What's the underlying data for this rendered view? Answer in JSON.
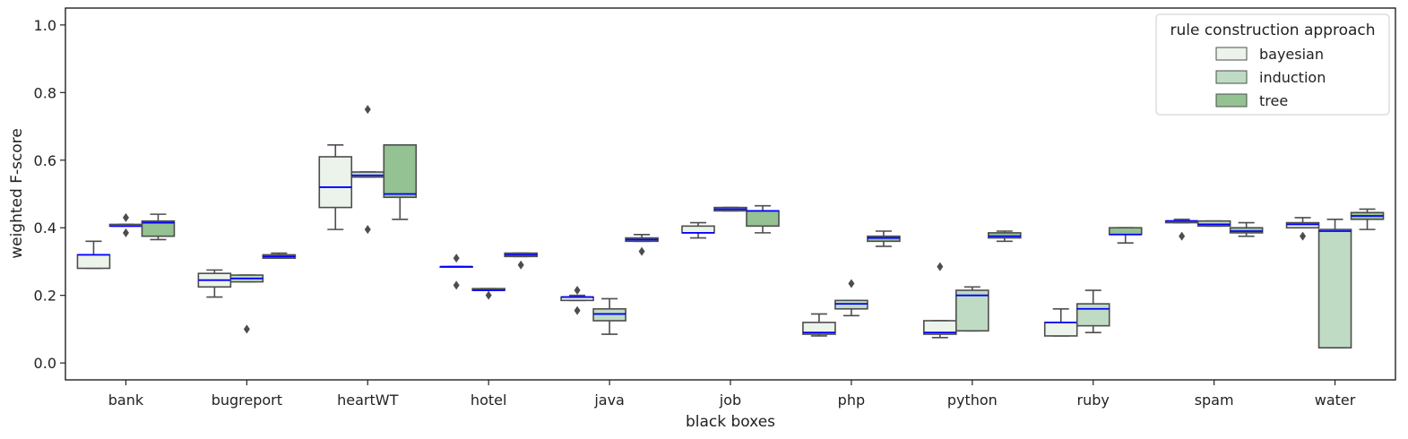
{
  "chart_data": {
    "type": "box",
    "xlabel": "black boxes",
    "ylabel": "weighted F-score",
    "ylim": [
      -0.05,
      1.05
    ],
    "yticks": [
      "0.0",
      "0.2",
      "0.4",
      "0.6",
      "0.8",
      "1.0"
    ],
    "categories": [
      "bank",
      "bugreport",
      "heartWT",
      "hotel",
      "java",
      "job",
      "php",
      "python",
      "ruby",
      "spam",
      "water"
    ],
    "legend": {
      "title": "rule construction approach",
      "position": "top-right"
    },
    "median_color": "#0000ff",
    "series": [
      {
        "name": "bayesian",
        "color": "#ebf3ea",
        "boxes": [
          {
            "whislo": 0.28,
            "q1": 0.28,
            "med": 0.32,
            "q3": 0.32,
            "whishi": 0.36,
            "fliers": []
          },
          {
            "whislo": 0.195,
            "q1": 0.225,
            "med": 0.245,
            "q3": 0.265,
            "whishi": 0.275,
            "fliers": []
          },
          {
            "whislo": 0.395,
            "q1": 0.46,
            "med": 0.52,
            "q3": 0.61,
            "whishi": 0.645,
            "fliers": []
          },
          {
            "whislo": 0.285,
            "q1": 0.285,
            "med": 0.285,
            "q3": 0.285,
            "whishi": 0.285,
            "fliers": [
              0.31,
              0.23
            ]
          },
          {
            "whislo": 0.185,
            "q1": 0.185,
            "med": 0.195,
            "q3": 0.195,
            "whishi": 0.2,
            "fliers": [
              0.215,
              0.155
            ]
          },
          {
            "whislo": 0.37,
            "q1": 0.385,
            "med": 0.385,
            "q3": 0.405,
            "whishi": 0.415,
            "fliers": []
          },
          {
            "whislo": 0.08,
            "q1": 0.085,
            "med": 0.09,
            "q3": 0.12,
            "whishi": 0.145,
            "fliers": []
          },
          {
            "whislo": 0.075,
            "q1": 0.085,
            "med": 0.09,
            "q3": 0.125,
            "whishi": 0.125,
            "fliers": [
              0.285
            ]
          },
          {
            "whislo": 0.08,
            "q1": 0.08,
            "med": 0.12,
            "q3": 0.12,
            "whishi": 0.16,
            "fliers": []
          },
          {
            "whislo": 0.415,
            "q1": 0.415,
            "med": 0.42,
            "q3": 0.42,
            "whishi": 0.425,
            "fliers": [
              0.375
            ]
          },
          {
            "whislo": 0.4,
            "q1": 0.4,
            "med": 0.41,
            "q3": 0.415,
            "whishi": 0.43,
            "fliers": [
              0.375
            ]
          }
        ]
      },
      {
        "name": "induction",
        "color": "#c0dbc3",
        "boxes": [
          {
            "whislo": 0.405,
            "q1": 0.405,
            "med": 0.405,
            "q3": 0.41,
            "whishi": 0.41,
            "fliers": [
              0.43,
              0.385
            ]
          },
          {
            "whislo": 0.24,
            "q1": 0.24,
            "med": 0.25,
            "q3": 0.26,
            "whishi": 0.26,
            "fliers": [
              0.1
            ]
          },
          {
            "whislo": 0.55,
            "q1": 0.55,
            "med": 0.555,
            "q3": 0.565,
            "whishi": 0.565,
            "fliers": [
              0.75,
              0.395
            ]
          },
          {
            "whislo": 0.215,
            "q1": 0.215,
            "med": 0.215,
            "q3": 0.22,
            "whishi": 0.22,
            "fliers": [
              0.2
            ]
          },
          {
            "whislo": 0.085,
            "q1": 0.125,
            "med": 0.145,
            "q3": 0.16,
            "whishi": 0.19,
            "fliers": []
          },
          {
            "whislo": 0.45,
            "q1": 0.45,
            "med": 0.455,
            "q3": 0.46,
            "whishi": 0.46,
            "fliers": []
          },
          {
            "whislo": 0.14,
            "q1": 0.16,
            "med": 0.175,
            "q3": 0.185,
            "whishi": 0.185,
            "fliers": [
              0.235
            ]
          },
          {
            "whislo": 0.095,
            "q1": 0.095,
            "med": 0.2,
            "q3": 0.215,
            "whishi": 0.225,
            "fliers": []
          },
          {
            "whislo": 0.09,
            "q1": 0.11,
            "med": 0.16,
            "q3": 0.175,
            "whishi": 0.215,
            "fliers": []
          },
          {
            "whislo": 0.405,
            "q1": 0.405,
            "med": 0.41,
            "q3": 0.42,
            "whishi": 0.42,
            "fliers": []
          },
          {
            "whislo": 0.045,
            "q1": 0.045,
            "med": 0.39,
            "q3": 0.395,
            "whishi": 0.425,
            "fliers": []
          }
        ]
      },
      {
        "name": "tree",
        "color": "#94c292",
        "boxes": [
          {
            "whislo": 0.365,
            "q1": 0.375,
            "med": 0.415,
            "q3": 0.42,
            "whishi": 0.44,
            "fliers": []
          },
          {
            "whislo": 0.31,
            "q1": 0.31,
            "med": 0.315,
            "q3": 0.32,
            "whishi": 0.325,
            "fliers": []
          },
          {
            "whislo": 0.425,
            "q1": 0.49,
            "med": 0.5,
            "q3": 0.645,
            "whishi": 0.645,
            "fliers": []
          },
          {
            "whislo": 0.315,
            "q1": 0.315,
            "med": 0.32,
            "q3": 0.325,
            "whishi": 0.325,
            "fliers": [
              0.29
            ]
          },
          {
            "whislo": 0.36,
            "q1": 0.36,
            "med": 0.365,
            "q3": 0.37,
            "whishi": 0.38,
            "fliers": [
              0.33
            ]
          },
          {
            "whislo": 0.385,
            "q1": 0.405,
            "med": 0.45,
            "q3": 0.45,
            "whishi": 0.465,
            "fliers": []
          },
          {
            "whislo": 0.345,
            "q1": 0.36,
            "med": 0.37,
            "q3": 0.375,
            "whishi": 0.39,
            "fliers": []
          },
          {
            "whislo": 0.36,
            "q1": 0.37,
            "med": 0.375,
            "q3": 0.385,
            "whishi": 0.39,
            "fliers": []
          },
          {
            "whislo": 0.355,
            "q1": 0.38,
            "med": 0.38,
            "q3": 0.4,
            "whishi": 0.4,
            "fliers": []
          },
          {
            "whislo": 0.375,
            "q1": 0.385,
            "med": 0.39,
            "q3": 0.4,
            "whishi": 0.415,
            "fliers": []
          },
          {
            "whislo": 0.395,
            "q1": 0.425,
            "med": 0.435,
            "q3": 0.445,
            "whishi": 0.455,
            "fliers": []
          }
        ]
      }
    ]
  }
}
